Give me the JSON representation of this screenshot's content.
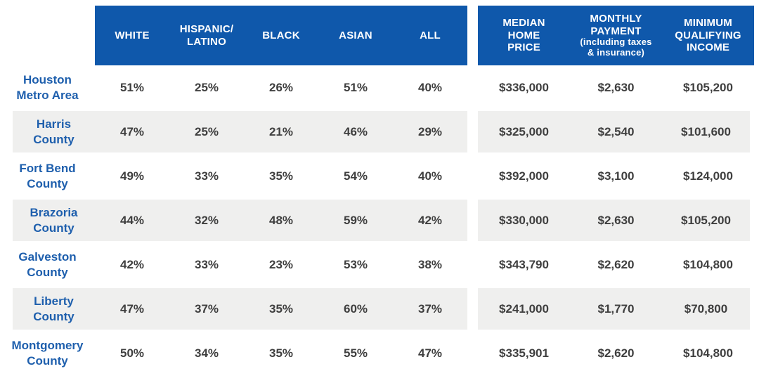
{
  "chart_data": {
    "type": "table",
    "description": "Share able to afford median-priced home by race/ethnicity and affordability metrics, Houston area",
    "headers": {
      "white": "WHITE",
      "hispanic_latino": "HISPANIC/\nLATINO",
      "black": "BLACK",
      "asian": "ASIAN",
      "all": "ALL",
      "median_home_price": "MEDIAN\nHOME\nPRICE",
      "monthly_payment": "MONTHLY\nPAYMENT",
      "monthly_payment_note": "(including taxes\n& insurance)",
      "minimum_qualifying_income": "MINIMUM\nQUALIFYING\nINCOME"
    },
    "rows": [
      {
        "label": "Houston\nMetro Area",
        "white": "51%",
        "hispanic_latino": "25%",
        "black": "26%",
        "asian": "51%",
        "all": "40%",
        "median_home_price": "$336,000",
        "monthly_payment": "$2,630",
        "minimum_qualifying_income": "$105,200"
      },
      {
        "label": "Harris\nCounty",
        "white": "47%",
        "hispanic_latino": "25%",
        "black": "21%",
        "asian": "46%",
        "all": "29%",
        "median_home_price": "$325,000",
        "monthly_payment": "$2,540",
        "minimum_qualifying_income": "$101,600"
      },
      {
        "label": "Fort Bend\nCounty",
        "white": "49%",
        "hispanic_latino": "33%",
        "black": "35%",
        "asian": "54%",
        "all": "40%",
        "median_home_price": "$392,000",
        "monthly_payment": "$3,100",
        "minimum_qualifying_income": "$124,000"
      },
      {
        "label": "Brazoria\nCounty",
        "white": "44%",
        "hispanic_latino": "32%",
        "black": "48%",
        "asian": "59%",
        "all": "42%",
        "median_home_price": "$330,000",
        "monthly_payment": "$2,630",
        "minimum_qualifying_income": "$105,200"
      },
      {
        "label": "Galveston\nCounty",
        "white": "42%",
        "hispanic_latino": "33%",
        "black": "23%",
        "asian": "53%",
        "all": "38%",
        "median_home_price": "$343,790",
        "monthly_payment": "$2,620",
        "minimum_qualifying_income": "$104,800"
      },
      {
        "label": "Liberty\nCounty",
        "white": "47%",
        "hispanic_latino": "37%",
        "black": "35%",
        "asian": "60%",
        "all": "37%",
        "median_home_price": "$241,000",
        "monthly_payment": "$1,770",
        "minimum_qualifying_income": "$70,800"
      },
      {
        "label": "Montgomery\nCounty",
        "white": "50%",
        "hispanic_latino": "34%",
        "black": "35%",
        "asian": "55%",
        "all": "47%",
        "median_home_price": "$335,901",
        "monthly_payment": "$2,620",
        "minimum_qualifying_income": "$104,800"
      }
    ],
    "colors": {
      "header_blue": "#0f58ab",
      "stripe_gray": "#efefee",
      "label_blue": "#1e5fad",
      "data_text": "#3f3f3f",
      "header_text": "#ffffff"
    },
    "layout": {
      "striped_rows": [
        "Harris County",
        "Brazoria County",
        "Liberty County"
      ],
      "grid": "off"
    }
  }
}
